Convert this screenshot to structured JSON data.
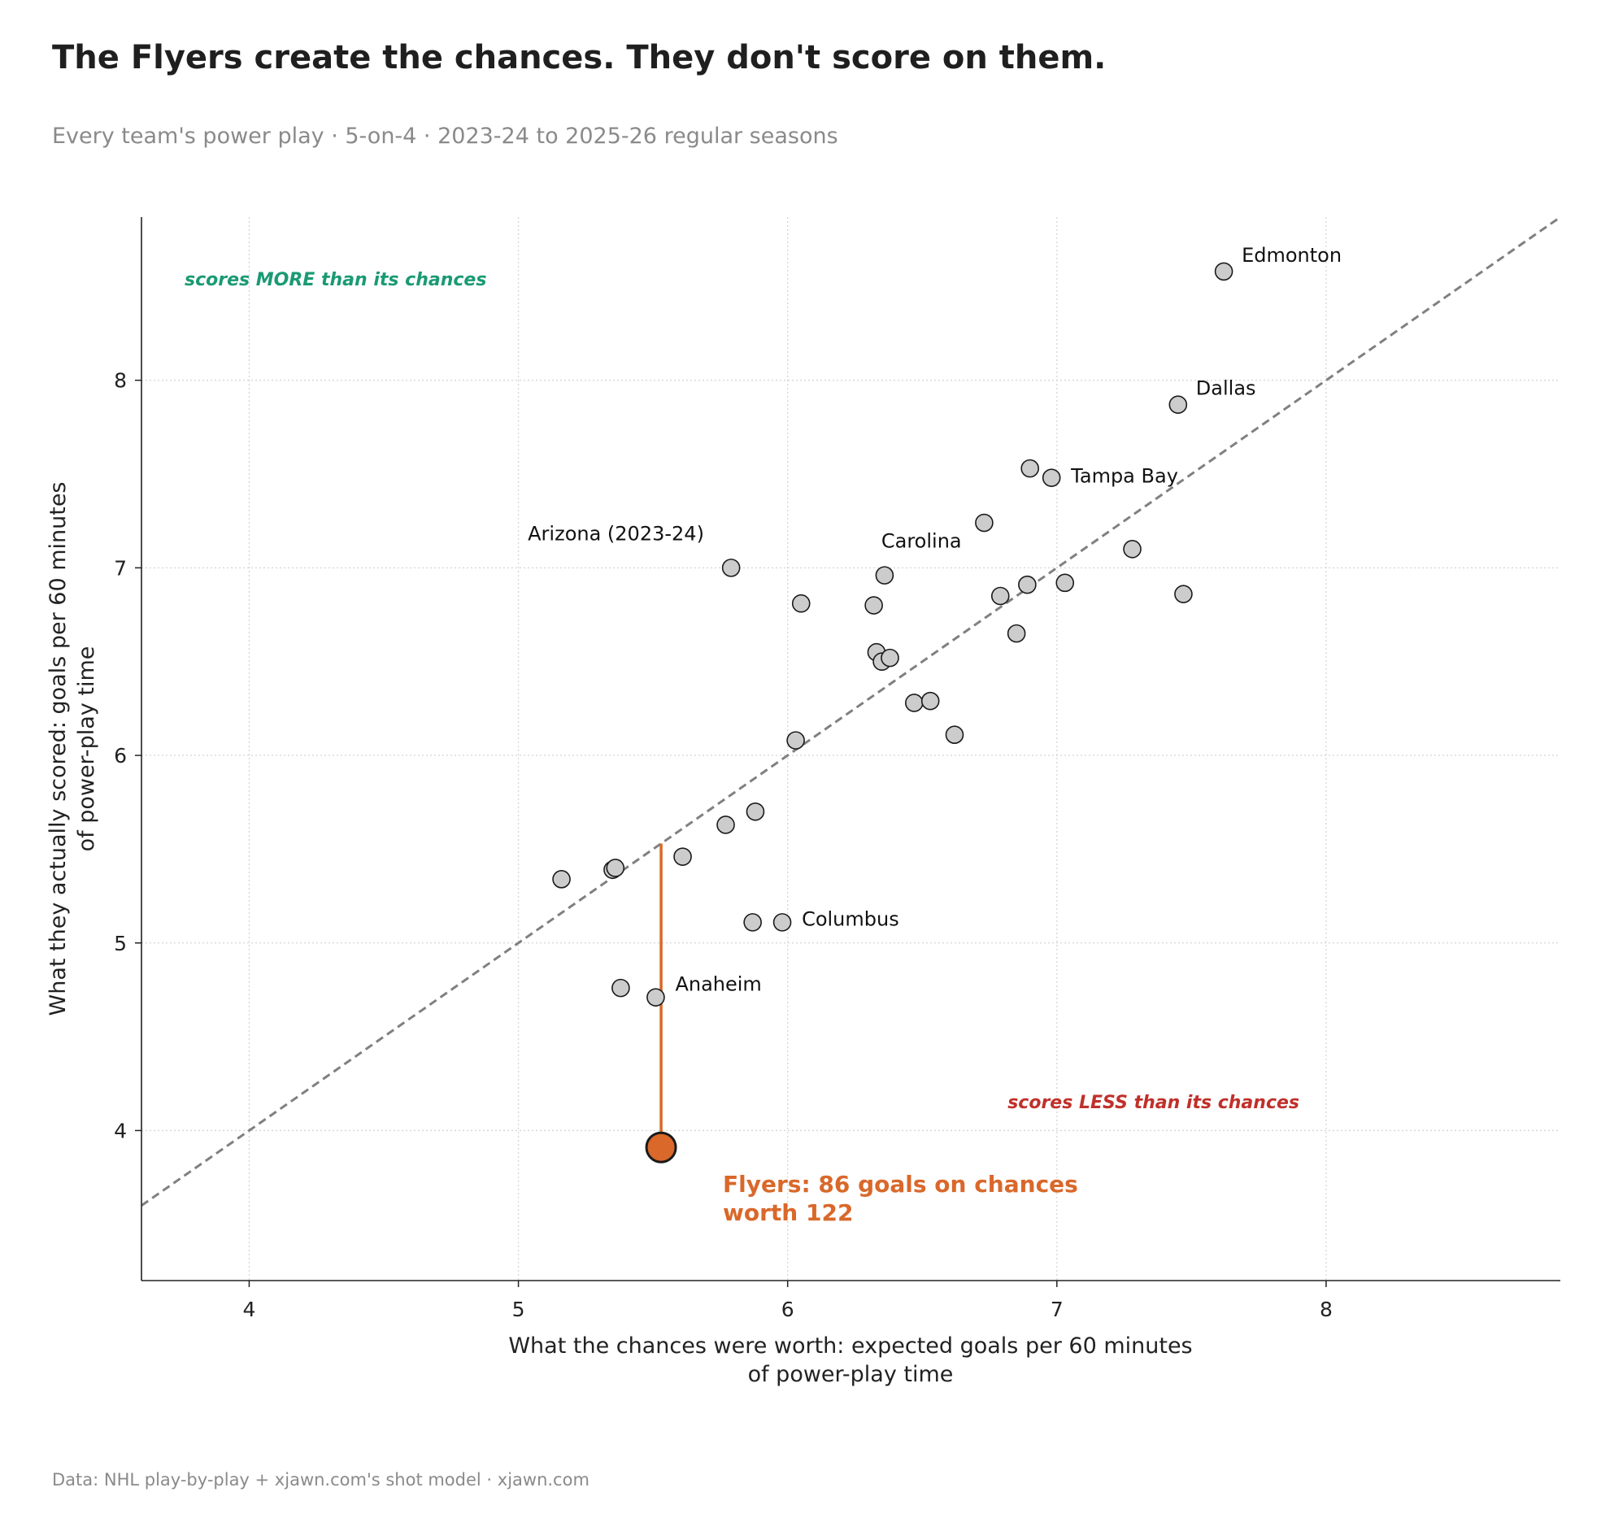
{
  "header": {
    "title": "The Flyers create the chances. They don't score on them.",
    "subtitle": "Every team's power play · 5-on-4 · 2023-24 to 2025-26 regular seasons"
  },
  "footer": {
    "source": "Data: NHL play-by-play + xjawn.com's shot model · xjawn.com"
  },
  "chart_data": {
    "type": "scatter",
    "title": "The Flyers create the chances. They don't score on them.",
    "subtitle": "Every team's power play · 5-on-4 · 2023-24 to 2025-26 regular seasons",
    "xlabel": [
      "What the chances were worth: expected goals per 60 minutes",
      "of power-play time"
    ],
    "ylabel": [
      "What they actually scored: goals per 60 minutes",
      "of power-play time"
    ],
    "xlim": [
      3.6,
      8.87
    ],
    "ylim": [
      3.2,
      8.87
    ],
    "xticks": [
      "4",
      "5",
      "6",
      "7",
      "8"
    ],
    "yticks": [
      "4",
      "5",
      "6",
      "7",
      "8"
    ],
    "grid": true,
    "reference_line": "y = x",
    "zones": {
      "above": "scores MORE than its chances",
      "below": "scores LESS than its chances"
    },
    "colors": {
      "point": "#cccccc",
      "highlight": "#d9682a",
      "above": "#1a9a73",
      "below": "#c0302a",
      "reference": "#808080"
    },
    "points": [
      {
        "x": 7.62,
        "y": 8.58,
        "label": "Edmonton"
      },
      {
        "x": 7.45,
        "y": 7.87,
        "label": "Dallas"
      },
      {
        "x": 6.98,
        "y": 7.48,
        "label": "Tampa Bay"
      },
      {
        "x": 6.9,
        "y": 7.53
      },
      {
        "x": 6.73,
        "y": 7.24
      },
      {
        "x": 7.28,
        "y": 7.1
      },
      {
        "x": 6.36,
        "y": 6.96,
        "label": "Carolina"
      },
      {
        "x": 5.79,
        "y": 7.0,
        "label": "Arizona (2023-24)"
      },
      {
        "x": 6.05,
        "y": 6.81
      },
      {
        "x": 6.32,
        "y": 6.8
      },
      {
        "x": 6.79,
        "y": 6.85
      },
      {
        "x": 6.89,
        "y": 6.91
      },
      {
        "x": 7.03,
        "y": 6.92
      },
      {
        "x": 7.47,
        "y": 6.86
      },
      {
        "x": 6.85,
        "y": 6.65
      },
      {
        "x": 6.33,
        "y": 6.55
      },
      {
        "x": 6.35,
        "y": 6.5
      },
      {
        "x": 6.38,
        "y": 6.52
      },
      {
        "x": 6.47,
        "y": 6.28
      },
      {
        "x": 6.53,
        "y": 6.29
      },
      {
        "x": 6.62,
        "y": 6.11
      },
      {
        "x": 6.03,
        "y": 6.08
      },
      {
        "x": 5.88,
        "y": 5.7
      },
      {
        "x": 5.77,
        "y": 5.63
      },
      {
        "x": 5.61,
        "y": 5.46
      },
      {
        "x": 5.35,
        "y": 5.39
      },
      {
        "x": 5.36,
        "y": 5.4
      },
      {
        "x": 5.16,
        "y": 5.34
      },
      {
        "x": 5.98,
        "y": 5.11,
        "label": "Columbus"
      },
      {
        "x": 5.87,
        "y": 5.11
      },
      {
        "x": 5.38,
        "y": 4.76
      },
      {
        "x": 5.51,
        "y": 4.71,
        "label": "Anaheim"
      }
    ],
    "highlight": {
      "name": "Flyers",
      "x": 5.53,
      "y": 3.91,
      "expected_y": 5.53,
      "annotation": [
        "Flyers: 86 goals on chances",
        "worth 122"
      ]
    }
  }
}
